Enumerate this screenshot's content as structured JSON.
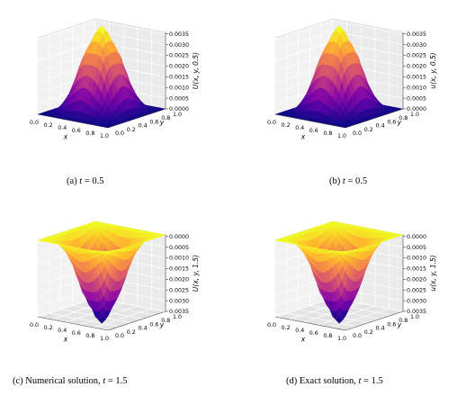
{
  "figure": {
    "panels": [
      {
        "id": "a",
        "caption_prefix": "(a) ",
        "caption_var": "t",
        "caption_eq": " = ",
        "caption_val": "0.5",
        "zlabel": "U(x, y, 0.5)",
        "mode": "up"
      },
      {
        "id": "b",
        "caption_prefix": "(b) ",
        "caption_var": "t",
        "caption_eq": " = ",
        "caption_val": "0.5",
        "zlabel": "u(x, y, 0.5)",
        "mode": "up"
      },
      {
        "id": "c",
        "caption_prefix": "(c) Numerical solution, ",
        "caption_var": "t",
        "caption_eq": " = ",
        "caption_val": "1.5",
        "zlabel": "U(x, y, 1.5)",
        "mode": "down"
      },
      {
        "id": "d",
        "caption_prefix": "(d) Exact solution, ",
        "caption_var": "t",
        "caption_eq": " = ",
        "caption_val": "1.5",
        "zlabel": "u(x, y, 1.5)",
        "mode": "down"
      }
    ]
  },
  "chart_data": {
    "type": "surface",
    "xlabel": "x",
    "ylabel": "y",
    "xlim": [
      0.0,
      1.0
    ],
    "ylim": [
      0.0,
      1.0
    ],
    "zlim": [
      0.0,
      0.0035
    ],
    "x_ticks": [
      "0.0",
      "0.2",
      "0.4",
      "0.6",
      "0.8",
      "1.0"
    ],
    "y_ticks": [
      "0.0",
      "0.2",
      "0.4",
      "0.6",
      "0.8",
      "1.0"
    ],
    "z_ticks_up": [
      "0.0000",
      "0.0005",
      "0.0010",
      "0.0015",
      "0.0020",
      "0.0025",
      "0.0030",
      "0.0035"
    ],
    "z_ticks_down": [
      "0.0000",
      "0.0005",
      "0.0010",
      "0.0015",
      "0.0020",
      "0.0025",
      "0.0030",
      "0.0035"
    ],
    "grid": true,
    "colormap": "plasma",
    "peak_value": 0.0037
  }
}
